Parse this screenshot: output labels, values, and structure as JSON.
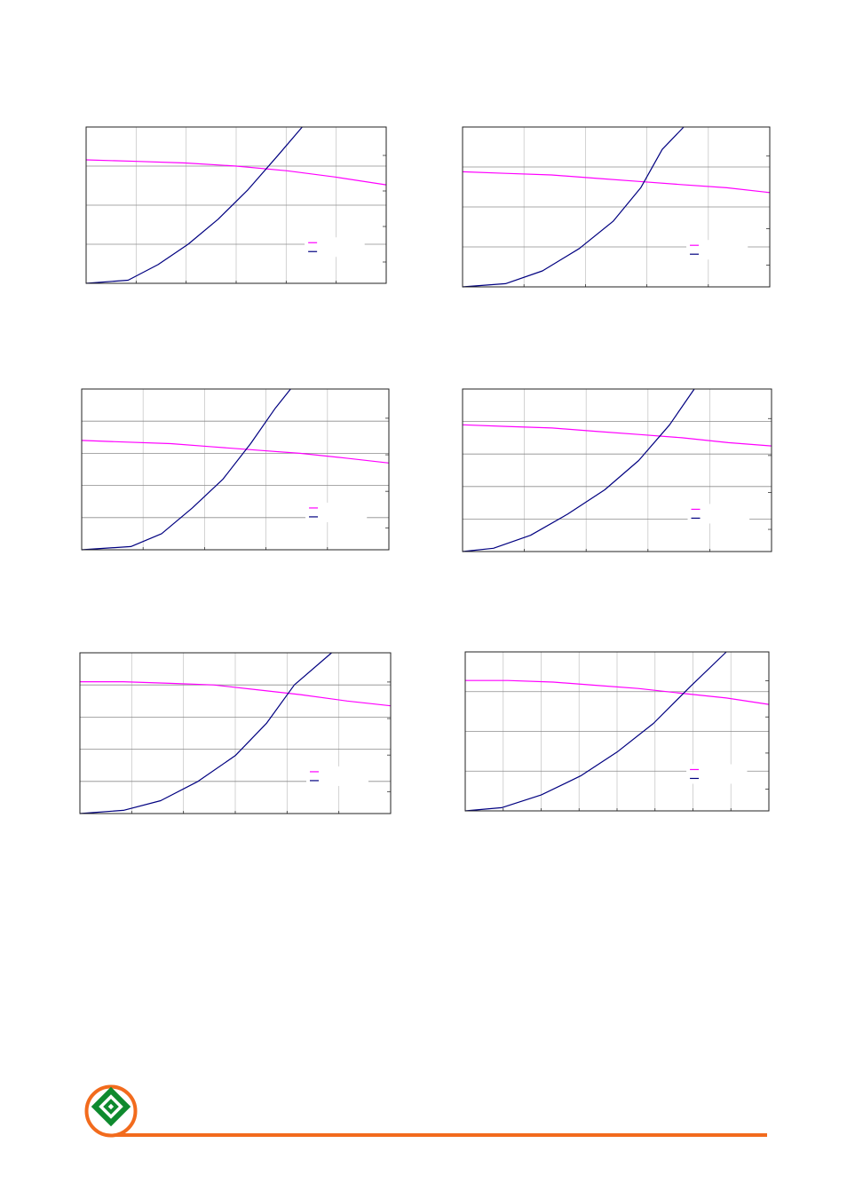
{
  "page": {
    "accent_color": "#F26B1D",
    "logo_green": "#0E8A2E",
    "logo_icon": "diamond-heart-logo"
  },
  "chart_data": [
    {
      "type": "line",
      "title": "",
      "xlabel": "",
      "ylabel": "",
      "grid": true,
      "legend": "bottom-right",
      "x_divisions": 6,
      "y_divisions": 4,
      "right_ticks": 4,
      "series": [
        {
          "color": "#FF00FF",
          "y": [
            0.79,
            0.78,
            0.77,
            0.75,
            0.72,
            0.68,
            0.63
          ],
          "x": [
            0,
            0.17,
            0.33,
            0.5,
            0.67,
            0.83,
            1.0
          ]
        },
        {
          "color": "#000080",
          "y": [
            0.0,
            0.02,
            0.12,
            0.25,
            0.41,
            0.6,
            0.82,
            1.0
          ],
          "x": [
            0,
            0.14,
            0.24,
            0.34,
            0.44,
            0.54,
            0.64,
            0.72
          ]
        }
      ]
    },
    {
      "type": "line",
      "title": "",
      "xlabel": "",
      "ylabel": "",
      "grid": true,
      "legend": "bottom-right",
      "x_divisions": 5,
      "y_divisions": 4,
      "right_ticks": 4,
      "series": [
        {
          "color": "#FF00FF",
          "y": [
            0.72,
            0.71,
            0.7,
            0.68,
            0.66,
            0.64,
            0.62,
            0.59
          ],
          "x": [
            0,
            0.14,
            0.29,
            0.43,
            0.57,
            0.71,
            0.86,
            1.0
          ]
        },
        {
          "color": "#000080",
          "y": [
            0.0,
            0.02,
            0.1,
            0.24,
            0.41,
            0.62,
            0.86,
            1.0
          ],
          "x": [
            0,
            0.14,
            0.26,
            0.38,
            0.49,
            0.58,
            0.65,
            0.72
          ]
        }
      ]
    },
    {
      "type": "line",
      "title": "",
      "xlabel": "",
      "ylabel": "",
      "grid": true,
      "legend": "bottom-right",
      "x_divisions": 5,
      "y_divisions": 5,
      "right_ticks": 4,
      "series": [
        {
          "color": "#FF00FF",
          "y": [
            0.68,
            0.67,
            0.66,
            0.64,
            0.62,
            0.6,
            0.57,
            0.54
          ],
          "x": [
            0,
            0.14,
            0.29,
            0.43,
            0.57,
            0.71,
            0.86,
            1.0
          ]
        },
        {
          "color": "#000080",
          "y": [
            0.0,
            0.02,
            0.1,
            0.26,
            0.44,
            0.66,
            0.88,
            1.0
          ],
          "x": [
            0,
            0.16,
            0.26,
            0.36,
            0.46,
            0.55,
            0.63,
            0.68
          ]
        }
      ]
    },
    {
      "type": "line",
      "title": "",
      "xlabel": "",
      "ylabel": "",
      "grid": true,
      "legend": "bottom-right",
      "x_divisions": 5,
      "y_divisions": 5,
      "right_ticks": 4,
      "series": [
        {
          "color": "#FF00FF",
          "y": [
            0.78,
            0.77,
            0.76,
            0.74,
            0.72,
            0.7,
            0.67,
            0.65
          ],
          "x": [
            0,
            0.14,
            0.29,
            0.43,
            0.57,
            0.71,
            0.86,
            1.0
          ]
        },
        {
          "color": "#000080",
          "y": [
            0.0,
            0.02,
            0.1,
            0.23,
            0.38,
            0.56,
            0.78,
            1.0
          ],
          "x": [
            0,
            0.1,
            0.22,
            0.34,
            0.46,
            0.57,
            0.67,
            0.75
          ]
        }
      ]
    },
    {
      "type": "line",
      "title": "",
      "xlabel": "",
      "ylabel": "",
      "grid": true,
      "legend": "bottom-right",
      "x_divisions": 6,
      "y_divisions": 5,
      "right_ticks": 4,
      "series": [
        {
          "color": "#FF00FF",
          "y": [
            0.82,
            0.82,
            0.81,
            0.8,
            0.77,
            0.74,
            0.7,
            0.67
          ],
          "x": [
            0,
            0.14,
            0.29,
            0.43,
            0.57,
            0.71,
            0.86,
            1.0
          ]
        },
        {
          "color": "#000080",
          "y": [
            0.0,
            0.02,
            0.08,
            0.2,
            0.36,
            0.56,
            0.8,
            1.0
          ],
          "x": [
            0,
            0.14,
            0.26,
            0.38,
            0.5,
            0.6,
            0.69,
            0.81
          ]
        }
      ]
    },
    {
      "type": "line",
      "title": "",
      "xlabel": "",
      "ylabel": "",
      "grid": true,
      "legend": "bottom-right",
      "x_divisions": 8,
      "y_divisions": 4,
      "right_ticks": 4,
      "series": [
        {
          "color": "#FF00FF",
          "y": [
            0.82,
            0.82,
            0.81,
            0.79,
            0.77,
            0.74,
            0.71,
            0.67
          ],
          "x": [
            0,
            0.14,
            0.29,
            0.43,
            0.57,
            0.71,
            0.86,
            1.0
          ]
        },
        {
          "color": "#000080",
          "y": [
            0.0,
            0.02,
            0.1,
            0.22,
            0.37,
            0.55,
            0.78,
            1.0
          ],
          "x": [
            0,
            0.12,
            0.25,
            0.38,
            0.5,
            0.62,
            0.74,
            0.86
          ]
        }
      ]
    }
  ]
}
